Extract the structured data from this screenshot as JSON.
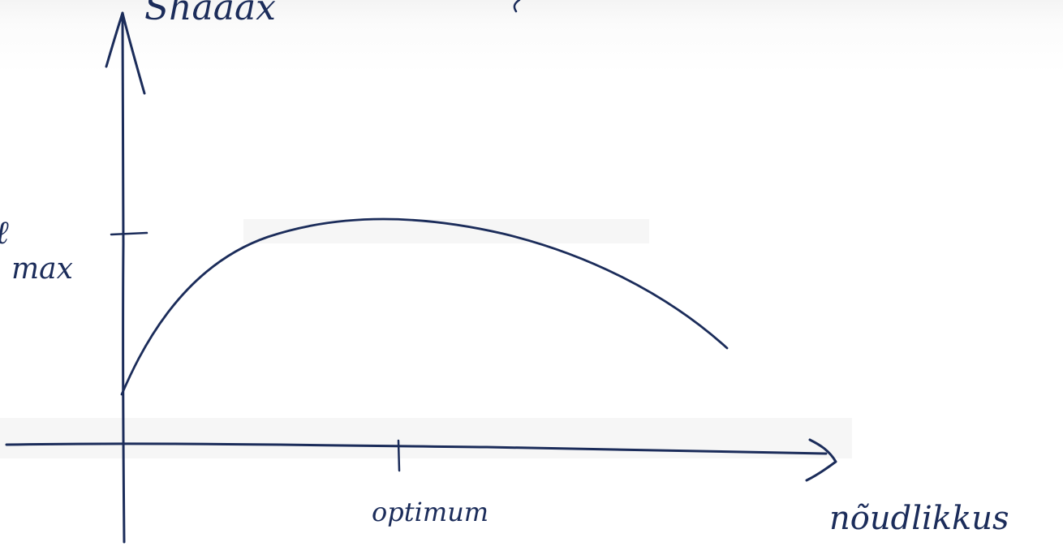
{
  "diagram": {
    "title_partial": "Shaaax",
    "y_label_line1": "ℓ",
    "y_label_line2": "max",
    "x_axis_label": "nõudlikkus",
    "x_tick_label": "optimum",
    "ink_color": "#1b2c5a",
    "background_color": "#ffffff"
  }
}
